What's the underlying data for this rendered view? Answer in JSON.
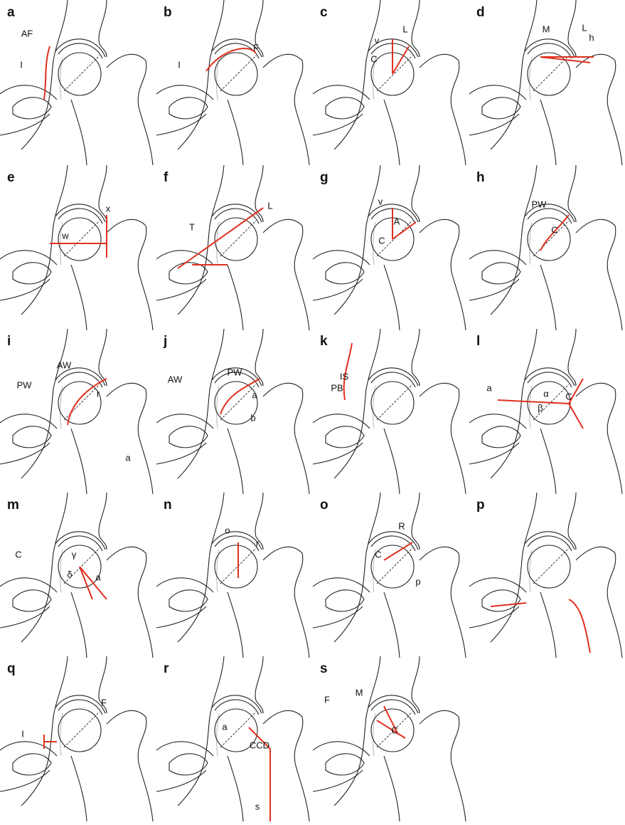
{
  "panels": [
    {
      "letter": "a",
      "labels": [
        "AF",
        "I"
      ]
    },
    {
      "letter": "b",
      "labels": [
        "I",
        "F"
      ]
    },
    {
      "letter": "c",
      "labels": [
        "v",
        "L",
        "C"
      ]
    },
    {
      "letter": "d",
      "labels": [
        "M",
        "L",
        "h"
      ]
    },
    {
      "letter": "e",
      "labels": [
        "x",
        "w"
      ]
    },
    {
      "letter": "f",
      "labels": [
        "T",
        "L"
      ]
    },
    {
      "letter": "g",
      "labels": [
        "v",
        "A",
        "C"
      ]
    },
    {
      "letter": "h",
      "labels": [
        "PW",
        "C"
      ]
    },
    {
      "letter": "i",
      "labels": [
        "AW",
        "PW",
        "r",
        "a"
      ]
    },
    {
      "letter": "j",
      "labels": [
        "PW",
        "AW",
        "a",
        "b"
      ]
    },
    {
      "letter": "k",
      "labels": [
        "IS",
        "PB"
      ]
    },
    {
      "letter": "l",
      "labels": [
        "a",
        "α",
        "C",
        "β"
      ]
    },
    {
      "letter": "m",
      "labels": [
        "C",
        "γ",
        "δ",
        "a"
      ]
    },
    {
      "letter": "n",
      "labels": [
        "o",
        "r"
      ]
    },
    {
      "letter": "o",
      "labels": [
        "R",
        "C",
        "p"
      ]
    },
    {
      "letter": "p",
      "labels": []
    },
    {
      "letter": "q",
      "labels": [
        "I",
        "F"
      ]
    },
    {
      "letter": "r",
      "labels": [
        "a",
        "CCD",
        "s"
      ]
    },
    {
      "letter": "s",
      "labels": [
        "F",
        "M",
        "C"
      ]
    }
  ]
}
